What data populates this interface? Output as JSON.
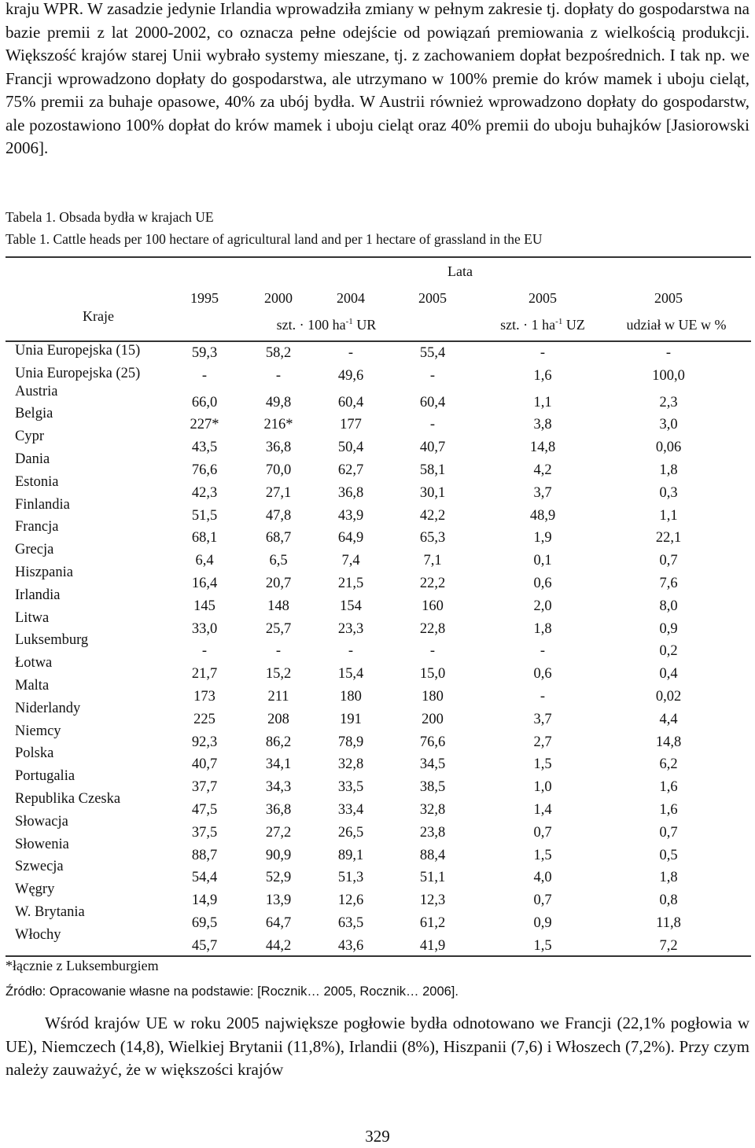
{
  "intro_paragraph": "kraju WPR. W zasadzie jedynie Irlandia wprowadziła zmiany w pełnym zakresie tj. dopłaty do gospodarstwa na bazie premii z lat 2000-2002, co oznacza pełne odejście od powiązań premiowania z wielkością produkcji. Większość krajów starej Unii wybrało systemy mieszane, tj. z zachowaniem dopłat bezpośrednich. I tak np. we Francji wprowadzono dopłaty do gospodarstwa, ale utrzymano w 100% premie do krów mamek i uboju cieląt, 75% premii za buhaje opasowe, 40% za ubój bydła. W Austrii również wprowadzono dopłaty do gospodarstw, ale pozostawiono 100% dopłat do krów mamek i uboju cieląt oraz 40% premii do uboju buhajków [Jasiorowski 2006].",
  "caption_pl": "Tabela 1. Obsada bydła w krajach UE",
  "caption_en": "Table 1. Cattle heads per 100 hectare of agricultural land and per 1 hectare of grassland in the EU",
  "table": {
    "header": {
      "kraje": "Kraje",
      "lata": "Lata",
      "years": [
        "1995",
        "2000",
        "2004",
        "2005",
        "2005",
        "2005"
      ],
      "unit1_pre": "szt. · 100 ha",
      "unit1_sup": "-1",
      "unit1_post": " UR",
      "unit2_pre": "szt. · 1 ha",
      "unit2_sup": "-1",
      "unit2_post": " UZ",
      "unit3": "udział w UE w %"
    },
    "rows": [
      {
        "country": "Unia Europejska (15)",
        "values": [
          "59,3",
          "58,2",
          "-",
          "55,4",
          "-",
          "-"
        ]
      },
      {
        "country": "Unia Europejska (25)",
        "values": [
          "-",
          "-",
          "49,6",
          "-",
          "1,6",
          "100,0"
        ]
      },
      {
        "country": "Austria",
        "values": [
          "66,0",
          "49,8",
          "60,4",
          "60,4",
          "1,1",
          "2,3"
        ]
      },
      {
        "country": "Belgia",
        "values": [
          "227*",
          "216*",
          "177",
          "-",
          "3,8",
          "3,0"
        ]
      },
      {
        "country": "Cypr",
        "values": [
          "43,5",
          "36,8",
          "50,4",
          "40,7",
          "14,8",
          "0,06"
        ]
      },
      {
        "country": "Dania",
        "values": [
          "76,6",
          "70,0",
          "62,7",
          "58,1",
          "4,2",
          "1,8"
        ]
      },
      {
        "country": "Estonia",
        "values": [
          "42,3",
          "27,1",
          "36,8",
          "30,1",
          "3,7",
          "0,3"
        ]
      },
      {
        "country": "Finlandia",
        "values": [
          "51,5",
          "47,8",
          "43,9",
          "42,2",
          "48,9",
          "1,1"
        ]
      },
      {
        "country": "Francja",
        "values": [
          "68,1",
          "68,7",
          "64,9",
          "65,3",
          "1,9",
          "22,1"
        ]
      },
      {
        "country": "Grecja",
        "values": [
          "6,4",
          "6,5",
          "7,4",
          "7,1",
          "0,1",
          "0,7"
        ]
      },
      {
        "country": "Hiszpania",
        "values": [
          "16,4",
          "20,7",
          "21,5",
          "22,2",
          "0,6",
          "7,6"
        ]
      },
      {
        "country": "Irlandia",
        "values": [
          "145",
          "148",
          "154",
          "160",
          "2,0",
          "8,0"
        ]
      },
      {
        "country": "Litwa",
        "values": [
          "33,0",
          "25,7",
          "23,3",
          "22,8",
          "1,8",
          "0,9"
        ]
      },
      {
        "country": "Luksemburg",
        "values": [
          "-",
          "-",
          "-",
          "-",
          "-",
          "0,2"
        ]
      },
      {
        "country": "Łotwa",
        "values": [
          "21,7",
          "15,2",
          "15,4",
          "15,0",
          "0,6",
          "0,4"
        ]
      },
      {
        "country": "Malta",
        "values": [
          "173",
          "211",
          "180",
          "180",
          "-",
          "0,02"
        ]
      },
      {
        "country": "Niderlandy",
        "values": [
          "225",
          "208",
          "191",
          "200",
          "3,7",
          "4,4"
        ]
      },
      {
        "country": "Niemcy",
        "values": [
          "92,3",
          "86,2",
          "78,9",
          "76,6",
          "2,7",
          "14,8"
        ]
      },
      {
        "country": "Polska",
        "values": [
          "40,7",
          "34,1",
          "32,8",
          "34,5",
          "1,5",
          "6,2"
        ]
      },
      {
        "country": "Portugalia",
        "values": [
          "37,7",
          "34,3",
          "33,5",
          "38,5",
          "1,0",
          "1,6"
        ]
      },
      {
        "country": "Republika Czeska",
        "values": [
          "47,5",
          "36,8",
          "33,4",
          "32,8",
          "1,4",
          "1,6"
        ]
      },
      {
        "country": "Słowacja",
        "values": [
          "37,5",
          "27,2",
          "26,5",
          "23,8",
          "0,7",
          "0,7"
        ]
      },
      {
        "country": "Słowenia",
        "values": [
          "88,7",
          "90,9",
          "89,1",
          "88,4",
          "1,5",
          "0,5"
        ]
      },
      {
        "country": "Szwecja",
        "values": [
          "54,4",
          "52,9",
          "51,3",
          "51,1",
          "4,0",
          "1,8"
        ]
      },
      {
        "country": "Węgry",
        "values": [
          "14,9",
          "13,9",
          "12,6",
          "12,3",
          "0,7",
          "0,8"
        ]
      },
      {
        "country": "W. Brytania",
        "values": [
          "69,5",
          "64,7",
          "63,5",
          "61,2",
          "0,9",
          "11,8"
        ]
      },
      {
        "country": "Włochy",
        "values": [
          "45,7",
          "44,2",
          "43,6",
          "41,9",
          "1,5",
          "7,2"
        ]
      }
    ]
  },
  "footnote": "*łącznie z Luksemburgiem",
  "source": "Źródło: Opracowanie własne na podstawie: [Rocznik… 2005, Rocznik… 2006].",
  "closing_paragraph": "Wśród krajów UE w roku 2005 największe pogłowie bydła odnotowano we Francji (22,1% pogłowia w UE), Niemczech (14,8), Wielkiej Brytanii (11,8%), Irlandii (8%), Hiszpanii (7,6) i Włoszech (7,2%). Przy czym należy zauważyć, że w większości krajów",
  "page_number": "329"
}
